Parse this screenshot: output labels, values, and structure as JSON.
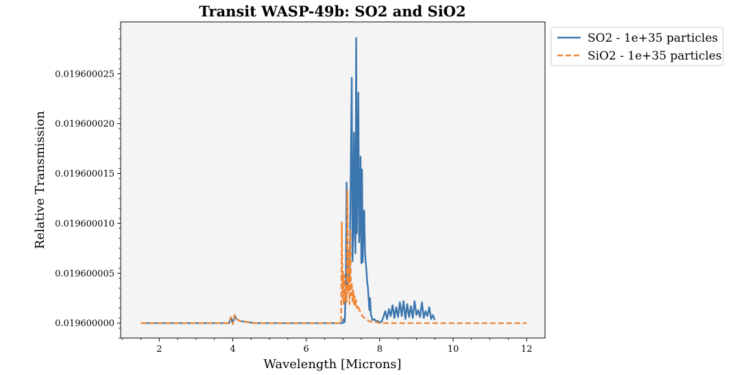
{
  "chart_data": {
    "type": "line",
    "title": "Transit WASP-49b: SO2 and SiO2",
    "xlabel": "Wavelength [Microns]",
    "ylabel": "Relative Transmission",
    "xlim": [
      0.95,
      12.5
    ],
    "ylim": [
      0.0195999985,
      0.0196000302
    ],
    "x_ticks": [
      2,
      4,
      6,
      8,
      10,
      12
    ],
    "x_tick_labels": [
      "2",
      "4",
      "6",
      "8",
      "10",
      "12"
    ],
    "y_ticks": [
      0.0196,
      0.019600005,
      0.01960001,
      0.019600015,
      0.01960002,
      0.019600025
    ],
    "y_tick_labels": [
      "0.019600000",
      "0.019600005",
      "0.019600010",
      "0.019600015",
      "0.019600020",
      "0.019600025"
    ],
    "grid": false,
    "legend_position": "outside-top-right",
    "baseline": 0.0196,
    "series": [
      {
        "name": "SO2 - 1e+35 particles",
        "color": "#3a75ae",
        "style": "solid",
        "x": [
          1.5,
          3.9,
          3.95,
          4.0,
          4.05,
          4.1,
          4.2,
          4.4,
          4.6,
          6.9,
          7.0,
          7.02,
          7.05,
          7.08,
          7.1,
          7.12,
          7.14,
          7.16,
          7.18,
          7.2,
          7.22,
          7.24,
          7.26,
          7.28,
          7.3,
          7.32,
          7.34,
          7.36,
          7.38,
          7.4,
          7.42,
          7.44,
          7.46,
          7.48,
          7.5,
          7.52,
          7.54,
          7.56,
          7.58,
          7.6,
          7.62,
          7.64,
          7.66,
          7.68,
          7.7,
          7.72,
          7.74,
          7.76,
          7.78,
          7.8,
          7.85,
          7.9,
          7.95,
          8.0,
          8.05,
          8.1,
          8.15,
          8.2,
          8.25,
          8.3,
          8.35,
          8.4,
          8.45,
          8.5,
          8.55,
          8.6,
          8.65,
          8.7,
          8.75,
          8.8,
          8.85,
          8.9,
          8.95,
          9.0,
          9.05,
          9.1,
          9.15,
          9.2,
          9.25,
          9.3,
          9.35,
          9.4,
          9.45,
          9.5
        ],
        "y": [
          0.0196,
          0.0196,
          0.0196000006,
          0.0195999999,
          0.0196000008,
          0.0196000004,
          0.0196000002,
          0.0196000001,
          0.0196,
          0.0196,
          0.0196,
          0.0196000004,
          0.0196000001,
          0.0196000045,
          0.0196000141,
          0.0196000037,
          0.0196000051,
          0.0196000062,
          0.0196000047,
          0.0196000108,
          0.0196000179,
          0.0196000246,
          0.0196000062,
          0.0196000092,
          0.0196000191,
          0.0196000098,
          0.019600007,
          0.0196000286,
          0.019600009,
          0.0196000156,
          0.0196000231,
          0.0196000081,
          0.0196000102,
          0.0196000167,
          0.019600006,
          0.0196000154,
          0.0196000061,
          0.019600011,
          0.0196000113,
          0.0196000071,
          0.0196000061,
          0.0196000053,
          0.0196000041,
          0.0196000036,
          0.0196000024,
          0.0196000013,
          0.0196000025,
          0.0196000008,
          0.0196000007,
          0.0196000003,
          0.0196000004,
          0.0196000002,
          0.0196000002,
          0.0196000001,
          0.0196000001,
          0.0196000006,
          0.0196000012,
          0.0196000004,
          0.0196000014,
          0.0196000007,
          0.0196000018,
          0.0196000005,
          0.0196000016,
          0.0196000006,
          0.0196000021,
          0.0196000007,
          0.0196000022,
          0.0196000004,
          0.0196000019,
          0.0196000006,
          0.0196000017,
          0.0196000005,
          0.0196000022,
          0.0196000008,
          0.0196000013,
          0.0196000006,
          0.0196000021,
          0.0196000005,
          0.0196000012,
          0.0196000007,
          0.0196000016,
          0.0196000004,
          0.0196000008,
          0.0196000003
        ]
      },
      {
        "name": "SiO2 - 1e+35 particles",
        "color": "#ef8636",
        "style": "dashed",
        "x": [
          1.5,
          3.9,
          3.95,
          4.0,
          4.05,
          4.1,
          4.2,
          4.4,
          4.6,
          6.95,
          6.97,
          6.99,
          7.0,
          7.02,
          7.04,
          7.06,
          7.08,
          7.1,
          7.12,
          7.14,
          7.16,
          7.18,
          7.2,
          7.22,
          7.24,
          7.26,
          7.28,
          7.3,
          7.32,
          7.34,
          7.36,
          7.38,
          7.4,
          7.45,
          7.5,
          7.55,
          7.6,
          7.65,
          7.7,
          7.8,
          7.9,
          8.0,
          8.5,
          9.0,
          10.0,
          11.0,
          12.0
        ],
        "y": [
          0.0196,
          0.0196,
          0.0196000006,
          0.0195999999,
          0.0196000008,
          0.0196000004,
          0.0196000002,
          0.0196000001,
          0.0196,
          0.0196,
          0.0196000101,
          0.0196000025,
          0.0196000052,
          0.0196000018,
          0.0196000048,
          0.0196000022,
          0.0196000038,
          0.0196000021,
          0.0196000133,
          0.0196000031,
          0.0196000074,
          0.0196000019,
          0.0196000093,
          0.0196000028,
          0.0196000041,
          0.0196000022,
          0.0196000034,
          0.0196000019,
          0.0196000027,
          0.0196000017,
          0.0196000023,
          0.0196000015,
          0.0196000018,
          0.0196000013,
          0.0196000009,
          0.0196000006,
          0.0196000005,
          0.0196000004,
          0.0196000002,
          0.0196000001,
          0.0196000001,
          0.0196,
          0.0196,
          0.0196,
          0.0196,
          0.0196,
          0.0196
        ]
      }
    ]
  }
}
